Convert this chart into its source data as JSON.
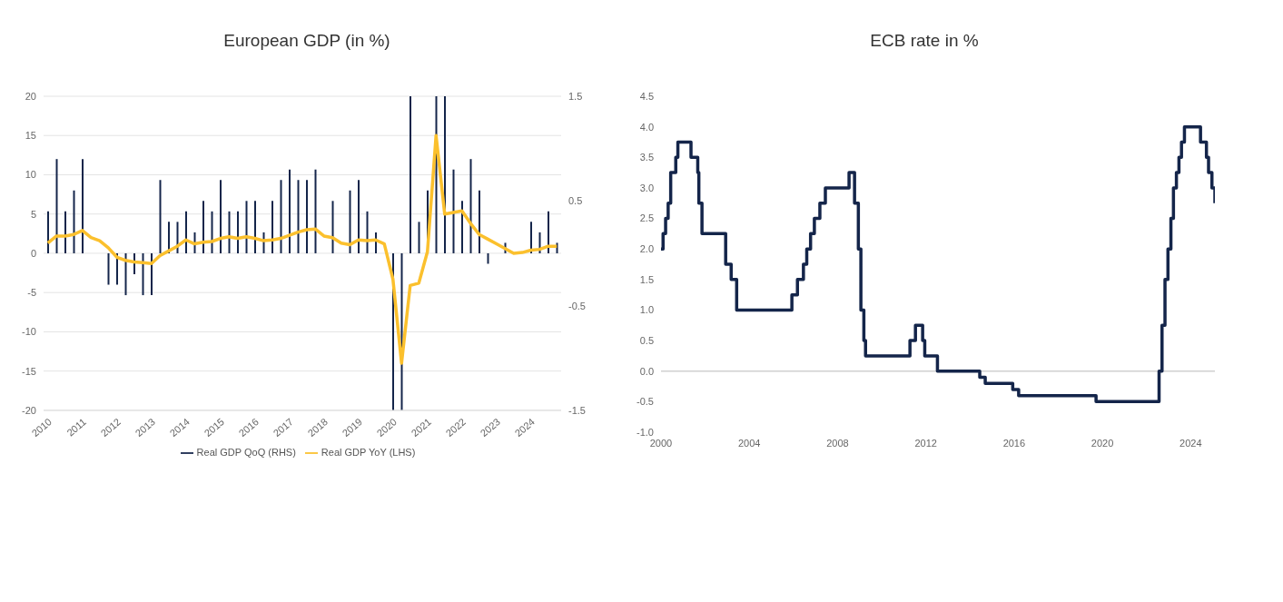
{
  "chart_data": [
    {
      "type": "bar",
      "title": "European GDP (in %)",
      "categories": [
        "2010",
        null,
        null,
        null,
        "2011",
        null,
        null,
        null,
        "2012",
        null,
        null,
        null,
        "2013",
        null,
        null,
        null,
        "2014",
        null,
        null,
        null,
        "2015",
        null,
        null,
        null,
        "2016",
        null,
        null,
        null,
        "2017",
        null,
        null,
        null,
        "2018",
        null,
        null,
        null,
        "2019",
        null,
        null,
        null,
        "2020",
        null,
        null,
        null,
        "2021",
        null,
        null,
        null,
        "2022",
        null,
        null,
        null,
        "2023",
        null,
        null,
        null,
        "2024",
        null,
        null,
        null
      ],
      "series": [
        {
          "name": "Real GDP QoQ (RHS)",
          "axis": "y2",
          "color": "#14254a",
          "values": [
            0.4,
            0.9,
            0.4,
            0.6,
            0.9,
            0,
            0,
            -0.3,
            -0.3,
            -0.4,
            -0.2,
            -0.4,
            -0.4,
            0.7,
            0.3,
            0.3,
            0.4,
            0.2,
            0.5,
            0.4,
            0.7,
            0.4,
            0.4,
            0.5,
            0.5,
            0.2,
            0.5,
            0.7,
            0.8,
            0.7,
            0.7,
            0.8,
            0,
            0.5,
            0,
            0.6,
            0.7,
            0.4,
            0.2,
            0,
            -1.5,
            -1.5,
            1.5,
            0.3,
            0.6,
            1.5,
            1.5,
            0.8,
            0.5,
            0.9,
            0.6,
            -0.1,
            0,
            0.1,
            0,
            0,
            0.3,
            0.2,
            0.4,
            0.1
          ]
        },
        {
          "name": "Real GDP YoY (LHS)",
          "type": "line",
          "color": "#fbc02d",
          "values": [
            1.3,
            2.2,
            2.2,
            2.4,
            2.9,
            2.0,
            1.6,
            0.7,
            -0.5,
            -0.9,
            -1.1,
            -1.2,
            -1.3,
            -0.3,
            0.3,
            0.9,
            1.7,
            1.2,
            1.4,
            1.5,
            1.9,
            2.1,
            1.9,
            2.1,
            1.9,
            1.6,
            1.7,
            1.9,
            2.3,
            2.7,
            3.0,
            3.1,
            2.2,
            2.0,
            1.3,
            1.1,
            1.7,
            1.6,
            1.7,
            1.2,
            -3.3,
            -14,
            -4.1,
            -3.8,
            0.2,
            15,
            5,
            5.2,
            5.4,
            3.8,
            2.4,
            1.8,
            1.2,
            0.6,
            0,
            0.1,
            0.4,
            0.5,
            0.9,
            0.9
          ]
        }
      ],
      "ylim": [
        -20,
        20
      ],
      "yticks": [
        -20,
        -15,
        -10,
        -5,
        0,
        5,
        10,
        15,
        20
      ],
      "y2lim": [
        -1.5,
        1.5
      ],
      "y2ticks": [
        -1.5,
        -0.5,
        0.5,
        1.5
      ],
      "grid": "y",
      "legend": "bottom"
    },
    {
      "type": "step",
      "title": "ECB rate in %",
      "series": [
        {
          "color": "#14254a",
          "x": [
            "2000-01-01",
            "2000-02-04",
            "2000-03-17",
            "2000-04-28",
            "2000-06-09",
            "2000-09-01",
            "2000-10-06",
            "2001-05-11",
            "2001-08-31",
            "2001-09-18",
            "2001-11-09",
            "2002-12-06",
            "2003-03-07",
            "2003-06-06",
            "2005-12-06",
            "2006-03-08",
            "2006-06-15",
            "2006-08-09",
            "2006-10-11",
            "2006-12-13",
            "2007-03-14",
            "2007-06-13",
            "2008-07-09",
            "2008-10-08",
            "2008-12-10",
            "2009-01-21",
            "2009-03-11",
            "2009-04-08",
            "2011-04-13",
            "2011-07-13",
            "2011-11-09",
            "2011-12-14",
            "2012-07-11",
            "2014-06-11",
            "2014-09-10",
            "2015-12-09",
            "2016-03-16",
            "2019-09-18",
            "2022-07-27",
            "2022-09-14",
            "2022-11-02",
            "2022-12-21",
            "2023-02-08",
            "2023-03-22",
            "2023-05-10",
            "2023-06-21",
            "2023-08-02",
            "2023-09-20",
            "2024-06-12",
            "2024-09-18",
            "2024-10-23",
            "2024-12-18",
            "2025-02-05"
          ],
          "values": [
            2.0,
            2.25,
            2.5,
            2.75,
            3.25,
            3.5,
            3.75,
            3.5,
            3.25,
            2.75,
            2.25,
            1.75,
            1.5,
            1.0,
            1.25,
            1.5,
            1.75,
            2.0,
            2.25,
            2.5,
            2.75,
            3.0,
            3.25,
            2.75,
            2.0,
            1.0,
            0.5,
            0.25,
            0.5,
            0.75,
            0.5,
            0.25,
            0,
            -0.1,
            -0.2,
            -0.3,
            -0.4,
            -0.5,
            0,
            0.75,
            1.5,
            2.0,
            2.5,
            3.0,
            3.25,
            3.5,
            3.75,
            4.0,
            3.75,
            3.5,
            3.25,
            3.0,
            2.75
          ]
        }
      ],
      "xlim": [
        "2000-01-01",
        "2025-02-05"
      ],
      "xticks": [
        "2000",
        "2004",
        "2008",
        "2012",
        "2016",
        "2020",
        "2024"
      ],
      "ylim": [
        -1,
        4.5
      ],
      "yticks": [
        {
          "value": -1,
          "label": "-1.0"
        },
        {
          "value": -0.5,
          "label": "-0.5"
        },
        {
          "value": 0,
          "label": "0.0"
        },
        {
          "value": 0.5,
          "label": "0.5"
        },
        {
          "value": 1,
          "label": "1.0"
        },
        {
          "value": 1.5,
          "label": "1.5"
        },
        {
          "value": 2,
          "label": "2.0"
        },
        {
          "value": 2.5,
          "label": "2.5"
        },
        {
          "value": 3,
          "label": "3.0"
        },
        {
          "value": 3.5,
          "label": "3.5"
        },
        {
          "value": 4,
          "label": "4.0"
        },
        {
          "value": 4.5,
          "label": "4.5"
        }
      ],
      "ref_lines": [
        {
          "axis": "y",
          "value": 0,
          "color": "#d0d0d0"
        }
      ]
    }
  ]
}
